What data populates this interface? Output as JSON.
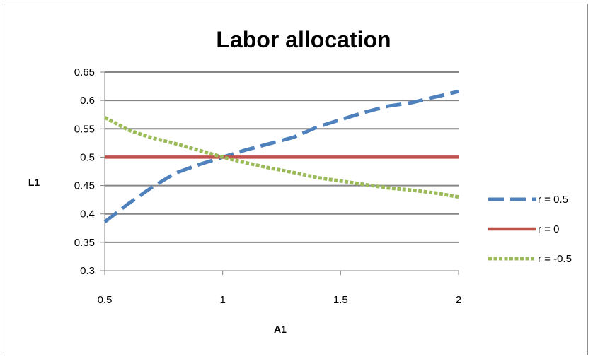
{
  "chart_data": {
    "type": "line",
    "title": "Labor allocation",
    "xlabel": "A1",
    "ylabel": "L1",
    "xlim": [
      0.5,
      2
    ],
    "ylim": [
      0.3,
      0.65
    ],
    "xticks": [
      0.5,
      1,
      1.5,
      2
    ],
    "yticks": [
      0.3,
      0.35,
      0.4,
      0.45,
      0.5,
      0.55,
      0.6,
      0.65
    ],
    "x_tick_labels": [
      "0.5",
      "1",
      "1.5",
      "2"
    ],
    "y_tick_labels": [
      "0.3",
      "0.35",
      "0.4",
      "0.45",
      "0.5",
      "0.55",
      "0.6",
      "0.65"
    ],
    "grid": true,
    "legend_position": "right",
    "series": [
      {
        "name": "r = 0.5",
        "color": "#4f81bd",
        "dash": "long-dash",
        "x": [
          0.5,
          0.6,
          0.7,
          0.8,
          0.9,
          1.0,
          1.1,
          1.2,
          1.3,
          1.4,
          1.5,
          1.6,
          1.7,
          1.8,
          1.9,
          2.0
        ],
        "y": [
          0.386,
          0.418,
          0.447,
          0.472,
          0.487,
          0.5,
          0.513,
          0.524,
          0.535,
          0.553,
          0.566,
          0.579,
          0.59,
          0.596,
          0.606,
          0.616
        ]
      },
      {
        "name": "r = 0",
        "color": "#c0504d",
        "dash": "solid",
        "x": [
          0.5,
          2.0
        ],
        "y": [
          0.5,
          0.5
        ]
      },
      {
        "name": "r = -0.5",
        "color": "#9bbb59",
        "dash": "dotted",
        "x": [
          0.5,
          0.6,
          0.7,
          0.8,
          0.9,
          1.0,
          1.1,
          1.2,
          1.3,
          1.4,
          1.5,
          1.6,
          1.7,
          1.8,
          1.9,
          2.0
        ],
        "y": [
          0.57,
          0.548,
          0.534,
          0.524,
          0.512,
          0.5,
          0.49,
          0.481,
          0.473,
          0.464,
          0.458,
          0.452,
          0.446,
          0.442,
          0.437,
          0.43
        ]
      }
    ]
  }
}
